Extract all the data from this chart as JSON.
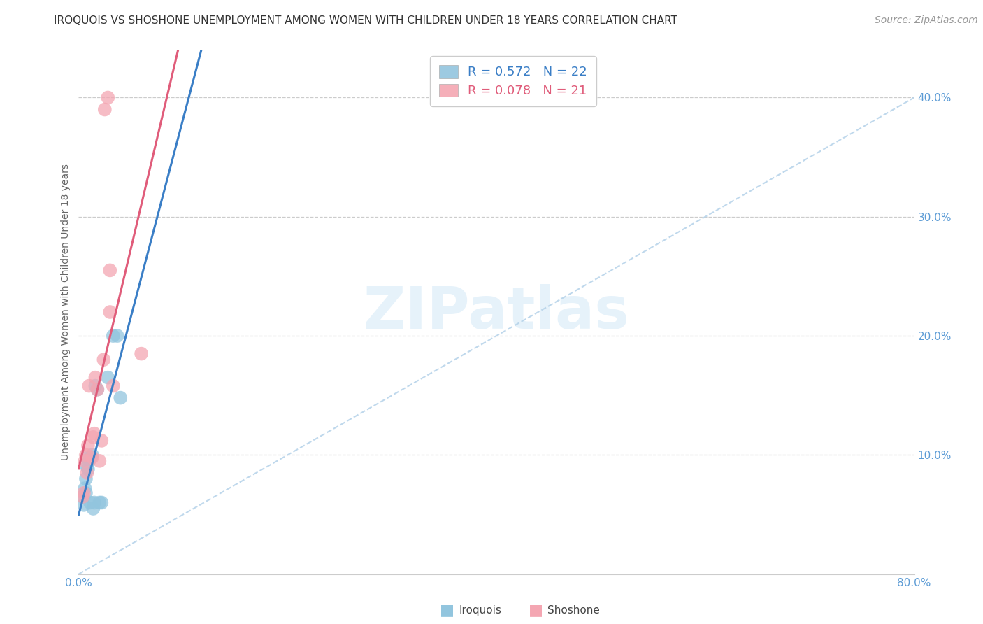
{
  "title": "IROQUOIS VS SHOSHONE UNEMPLOYMENT AMONG WOMEN WITH CHILDREN UNDER 18 YEARS CORRELATION CHART",
  "source": "Source: ZipAtlas.com",
  "ylabel": "Unemployment Among Women with Children Under 18 years",
  "xlim": [
    0.0,
    0.8
  ],
  "ylim": [
    0.0,
    0.44
  ],
  "xticks": [
    0.0,
    0.8
  ],
  "xticklabels": [
    "0.0%",
    "80.0%"
  ],
  "yticks": [
    0.1,
    0.2,
    0.3,
    0.4
  ],
  "yticklabels": [
    "10.0%",
    "20.0%",
    "30.0%",
    "40.0%"
  ],
  "iroquois_R": 0.572,
  "iroquois_N": 22,
  "shoshone_R": 0.078,
  "shoshone_N": 21,
  "iroquois_color": "#92c5de",
  "shoshone_color": "#f4a6b2",
  "iroquois_line_color": "#3a7ec6",
  "shoshone_line_color": "#e05c7a",
  "trendline_color": "#b8d4ea",
  "watermark_color": "#d6eaf8",
  "iroquois_x": [
    0.004,
    0.005,
    0.006,
    0.007,
    0.007,
    0.008,
    0.008,
    0.009,
    0.01,
    0.011,
    0.012,
    0.013,
    0.014,
    0.015,
    0.016,
    0.018,
    0.02,
    0.022,
    0.028,
    0.033,
    0.037,
    0.04
  ],
  "iroquois_y": [
    0.065,
    0.058,
    0.072,
    0.068,
    0.08,
    0.09,
    0.098,
    0.088,
    0.095,
    0.06,
    0.098,
    0.1,
    0.055,
    0.06,
    0.158,
    0.155,
    0.06,
    0.06,
    0.165,
    0.2,
    0.2,
    0.148
  ],
  "shoshone_x": [
    0.004,
    0.005,
    0.006,
    0.007,
    0.008,
    0.009,
    0.01,
    0.013,
    0.014,
    0.015,
    0.016,
    0.018,
    0.02,
    0.022,
    0.024,
    0.025,
    0.028,
    0.03,
    0.03,
    0.033,
    0.06
  ],
  "shoshone_y": [
    0.065,
    0.068,
    0.095,
    0.1,
    0.085,
    0.108,
    0.158,
    0.098,
    0.115,
    0.118,
    0.165,
    0.155,
    0.095,
    0.112,
    0.18,
    0.39,
    0.4,
    0.255,
    0.22,
    0.158,
    0.185
  ],
  "background_color": "#ffffff",
  "grid_color": "#cccccc",
  "title_fontsize": 11,
  "axis_label_fontsize": 10,
  "tick_fontsize": 11,
  "legend_fontsize": 13,
  "source_fontsize": 10,
  "ylabel_color": "#666666",
  "tick_color": "#5b9bd5",
  "title_color": "#333333"
}
